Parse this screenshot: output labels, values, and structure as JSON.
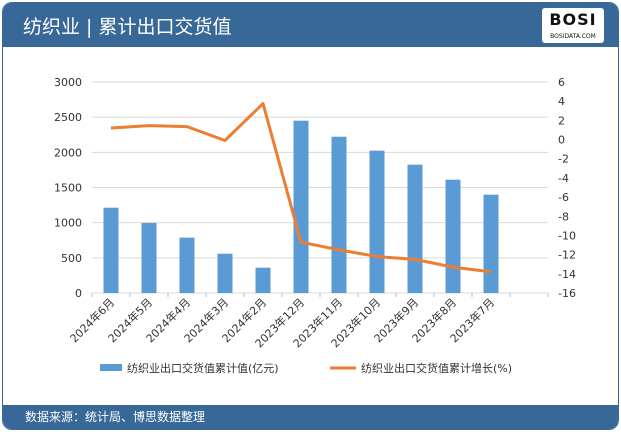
{
  "header": {
    "title": "纺织业 | 累计出口交货值",
    "logo_text": "BOSI",
    "logo_sub": "BOSIDATA.COM"
  },
  "footer": {
    "source": "数据来源：统计局、博思数据整理"
  },
  "colors": {
    "bar": "#5b9bd5",
    "line": "#ed7d31",
    "header": "#386897"
  },
  "chart_data": {
    "type": "bar+line",
    "categories": [
      "2024年6月",
      "2024年5月",
      "2024年4月",
      "2024年3月",
      "2024年2月",
      "2023年12月",
      "2023年11月",
      "2023年10月",
      "2023年9月",
      "2023年8月",
      "2023年7月"
    ],
    "series": [
      {
        "name": "纺织业出口交货值累计值(亿元)",
        "type": "bar",
        "axis": "left",
        "values": [
          1213,
          995,
          787,
          559,
          360,
          2450,
          2222,
          2024,
          1825,
          1611,
          1398
        ]
      },
      {
        "name": "纺织业出口交货值累计增长(%)",
        "type": "line",
        "axis": "right",
        "values": [
          1.2,
          1.45,
          1.35,
          -0.1,
          3.75,
          -10.7,
          -11.5,
          -12.2,
          -12.5,
          -13.3,
          -13.8
        ]
      }
    ],
    "y_left": {
      "range": [
        0,
        3000
      ],
      "ticks": [
        0,
        500,
        1000,
        1500,
        2000,
        2500,
        3000
      ]
    },
    "y_right": {
      "range": [
        -16,
        6
      ],
      "ticks": [
        6,
        4,
        2,
        0,
        -2,
        -4,
        -6,
        -8,
        -10,
        -12,
        -14,
        -16
      ]
    },
    "grid": true,
    "legend": "bottom"
  }
}
